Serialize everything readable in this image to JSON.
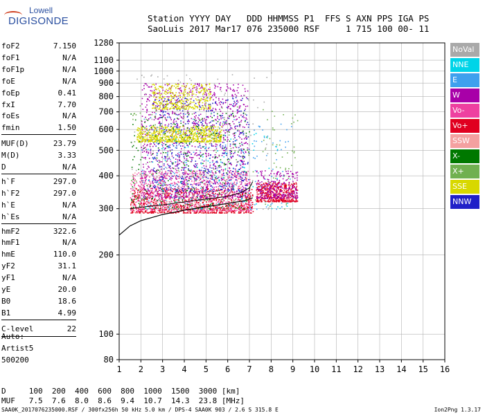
{
  "logo": {
    "line1": "Lowell",
    "line2": "DIGISONDE"
  },
  "header": {
    "line1": "Station YYYY DAY   DDD HHMMSS P1  FFS S AXN PPS IGA PS",
    "line2": "SaoLuis 2017 Mar17 076 235000 RSF     1 715 100 00- 11"
  },
  "params": [
    {
      "label": "foF2",
      "value": "7.150"
    },
    {
      "label": "foF1",
      "value": "N/A"
    },
    {
      "label": "foF1p",
      "value": "N/A"
    },
    {
      "label": "foE",
      "value": "N/A"
    },
    {
      "label": "foEp",
      "value": "0.41"
    },
    {
      "label": "fxI",
      "value": "7.70"
    },
    {
      "label": "foEs",
      "value": "N/A"
    },
    {
      "label": "fmin",
      "value": "1.50"
    },
    {
      "label": "MUF(D)",
      "value": "23.79"
    },
    {
      "label": "M(D)",
      "value": "3.33"
    },
    {
      "label": "D",
      "value": "N/A"
    },
    {
      "label": "h`F",
      "value": "297.0"
    },
    {
      "label": "h`F2",
      "value": "297.0"
    },
    {
      "label": "h`E",
      "value": "N/A"
    },
    {
      "label": "h`Es",
      "value": "N/A"
    },
    {
      "label": "hmF2",
      "value": "322.6"
    },
    {
      "label": "hmF1",
      "value": "N/A"
    },
    {
      "label": "hmE",
      "value": "110.0"
    },
    {
      "label": "yF2",
      "value": "31.1"
    },
    {
      "label": "yF1",
      "value": "N/A"
    },
    {
      "label": "yE",
      "value": "20.0"
    },
    {
      "label": "B0",
      "value": "18.6"
    },
    {
      "label": "B1",
      "value": "4.99"
    },
    {
      "label": "C-level",
      "value": "22"
    }
  ],
  "auto": [
    "Auto:",
    "Artist5",
    "500200"
  ],
  "legend": [
    {
      "label": "NoVal",
      "color": "#a9a9a9"
    },
    {
      "label": "NNE",
      "color": "#00d4e8"
    },
    {
      "label": "E",
      "color": "#3fa0ee"
    },
    {
      "label": "W",
      "color": "#a800a8"
    },
    {
      "label": "Vo-",
      "color": "#ee40a0"
    },
    {
      "label": "Vo+",
      "color": "#e00020"
    },
    {
      "label": "SSW",
      "color": "#f4a0a0"
    },
    {
      "label": "X-",
      "color": "#007800"
    },
    {
      "label": "X+",
      "color": "#70b050"
    },
    {
      "label": "SSE",
      "color": "#d8d800"
    },
    {
      "label": "NNW",
      "color": "#2020c8"
    }
  ],
  "footer": {
    "line1": "D     100  200  400  600  800  1000  1500  3000 [km]",
    "line2": "MUF   7.5  7.6  8.0  8.6  9.4  10.7  14.3  23.8 [MHz]"
  },
  "filename": "SAA0K_2017076235000.RSF / 300fx256h 50 kHz 5.0 km / DPS-4 SAA0K 903 / 2.6 S 315.8 E",
  "version": "Ion2Png 1.3.17",
  "chart_data": {
    "type": "scatter",
    "title": "",
    "xlabel": "",
    "ylabel": "",
    "xlim": [
      1,
      16
    ],
    "ylim": [
      80,
      1280
    ],
    "y_scale": "log",
    "x_ticks": [
      1,
      2,
      3,
      4,
      5,
      6,
      7,
      8,
      9,
      10,
      11,
      12,
      13,
      14,
      15,
      16
    ],
    "y_ticks": [
      80,
      100,
      200,
      300,
      400,
      500,
      600,
      700,
      800,
      900,
      1000,
      1100,
      1280
    ],
    "grid": true,
    "clusters": [
      {
        "name": "o-trace F-layer",
        "color": "#e00020",
        "xmin": 1.5,
        "xmax": 7.15,
        "hmin": 290,
        "hmax": 360,
        "density": 900
      },
      {
        "name": "Vo- trace",
        "color": "#ee40a0",
        "xmin": 1.5,
        "xmax": 7.1,
        "hmin": 295,
        "hmax": 420,
        "density": 700
      },
      {
        "name": "spread F",
        "color": "#a800a8",
        "xmin": 2.0,
        "xmax": 6.9,
        "hmin": 330,
        "hmax": 900,
        "density": 1200
      },
      {
        "name": "spread F2",
        "color": "#2020c8",
        "xmin": 2.5,
        "xmax": 7.0,
        "hmin": 350,
        "hmax": 800,
        "density": 500
      },
      {
        "name": "SSE echoes",
        "color": "#d8d800",
        "xmin": 1.8,
        "xmax": 5.7,
        "hmin": 540,
        "hmax": 620,
        "density": 700
      },
      {
        "name": "SSE upper",
        "color": "#d8d800",
        "xmin": 2.5,
        "xmax": 5.2,
        "hmin": 720,
        "hmax": 900,
        "density": 350
      },
      {
        "name": "X echoes",
        "color": "#007800",
        "xmin": 1.5,
        "xmax": 7.0,
        "hmin": 300,
        "hmax": 700,
        "density": 250
      },
      {
        "name": "X+ echoes",
        "color": "#70b050",
        "xmin": 1.5,
        "xmax": 9.2,
        "hmin": 300,
        "hmax": 750,
        "density": 200
      },
      {
        "name": "E echoes",
        "color": "#3fa0ee",
        "xmin": 2.0,
        "xmax": 9.0,
        "hmin": 300,
        "hmax": 700,
        "density": 200
      },
      {
        "name": "NNE echoes",
        "color": "#00d4e8",
        "xmin": 2.0,
        "xmax": 9.0,
        "hmin": 300,
        "hmax": 600,
        "density": 120
      },
      {
        "name": "SSW echoes",
        "color": "#f4a0a0",
        "xmin": 1.5,
        "xmax": 7.0,
        "hmin": 290,
        "hmax": 420,
        "density": 200
      },
      {
        "name": "NoVal",
        "color": "#a9a9a9",
        "xmin": 1.5,
        "xmax": 8.0,
        "hmin": 300,
        "hmax": 1000,
        "density": 120
      },
      {
        "name": "F-layer 7.5-9.2 MHz",
        "color": "#e00020",
        "xmin": 7.3,
        "xmax": 9.2,
        "hmin": 320,
        "hmax": 380,
        "density": 450
      },
      {
        "name": "F-layer 7.5-9.2 MHz purple",
        "color": "#a800a8",
        "xmin": 7.3,
        "xmax": 9.2,
        "hmin": 330,
        "hmax": 420,
        "density": 250
      }
    ],
    "profile": {
      "name": "electron density profile",
      "color": "#000000",
      "points": [
        [
          1.0,
          238
        ],
        [
          1.5,
          258
        ],
        [
          2.0,
          270
        ],
        [
          3.0,
          285
        ],
        [
          4.0,
          296
        ],
        [
          5.0,
          305
        ],
        [
          6.0,
          314
        ],
        [
          6.8,
          322
        ],
        [
          7.15,
          330
        ]
      ]
    },
    "trace": {
      "name": "o-trace",
      "color": "#000000",
      "points": [
        [
          1.5,
          300
        ],
        [
          2.0,
          304
        ],
        [
          3.0,
          310
        ],
        [
          4.0,
          318
        ],
        [
          5.0,
          326
        ],
        [
          6.0,
          334
        ],
        [
          6.6,
          345
        ],
        [
          7.0,
          360
        ],
        [
          7.15,
          380
        ]
      ]
    }
  }
}
